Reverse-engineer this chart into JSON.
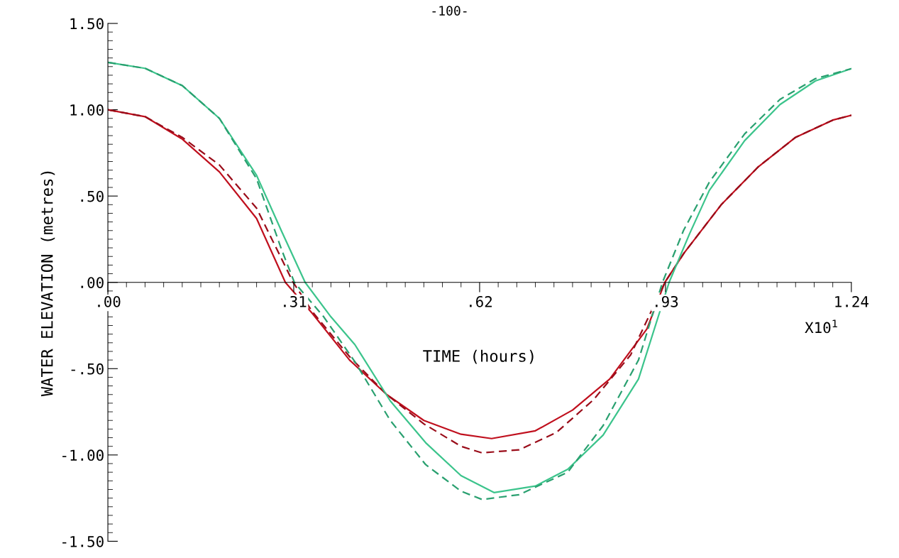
{
  "chart_data": {
    "type": "line",
    "xlabel": "TIME (hours)",
    "ylabel": "WATER ELEVATION (metres)",
    "annotations": [
      "-100-",
      "X10$^{1}$"
    ],
    "xlim": [
      0,
      1.24
    ],
    "ylim": [
      -1.5,
      1.5
    ],
    "xticks": [
      {
        "value": 0,
        "label": ".00"
      },
      {
        "value": 0.31,
        "label": ".31"
      },
      {
        "value": 0.62,
        "label": ".62"
      },
      {
        "value": 0.93,
        "label": ".93"
      },
      {
        "value": 1.24,
        "label": "1.24"
      }
    ],
    "yticks": [
      {
        "value": -1.5,
        "label": "-1.50"
      },
      {
        "value": -1.0,
        "label": "-1.00"
      },
      {
        "value": -0.5,
        "label": "-.50"
      },
      {
        "value": 0,
        "label": ".00"
      },
      {
        "value": 0.5,
        "label": ".50"
      },
      {
        "value": 1.0,
        "label": "1.00"
      },
      {
        "value": 1.5,
        "label": "1.50"
      }
    ],
    "grid": false,
    "marker": "none",
    "series": [
      {
        "color": "#c0101e",
        "line_style": "solid",
        "x": [
          0,
          0.062,
          0.124,
          0.186,
          0.248,
          0.296,
          0.341,
          0.403,
          0.465,
          0.527,
          0.589,
          0.64,
          0.713,
          0.775,
          0.837,
          0.899,
          0.929,
          0.961,
          1.023,
          1.085,
          1.147,
          1.209,
          1.24
        ],
        "values": [
          1.0,
          0.96,
          0.83,
          0.64,
          0.37,
          0,
          -0.18,
          -0.45,
          -0.65,
          -0.8,
          -0.88,
          -0.905,
          -0.86,
          -0.74,
          -0.56,
          -0.27,
          0,
          0.17,
          0.45,
          0.67,
          0.84,
          0.94,
          0.968
        ]
      },
      {
        "color": "#9a0d1a",
        "line_style": "dashed",
        "x": [
          0,
          0.062,
          0.124,
          0.186,
          0.248,
          0.309,
          0.341,
          0.403,
          0.465,
          0.527,
          0.589,
          0.624,
          0.686,
          0.748,
          0.81,
          0.872,
          0.929,
          0.961,
          1.023,
          1.085,
          1.147,
          1.209,
          1.24
        ],
        "values": [
          1.0,
          0.96,
          0.84,
          0.68,
          0.43,
          0,
          -0.17,
          -0.43,
          -0.65,
          -0.82,
          -0.95,
          -0.988,
          -0.97,
          -0.87,
          -0.68,
          -0.42,
          0,
          0.17,
          0.45,
          0.67,
          0.84,
          0.94,
          0.968
        ]
      },
      {
        "color": "#3cc48c",
        "line_style": "solid",
        "x": [
          0,
          0.062,
          0.124,
          0.186,
          0.248,
          0.29,
          0.329,
          0.372,
          0.412,
          0.471,
          0.53,
          0.589,
          0.644,
          0.713,
          0.767,
          0.826,
          0.885,
          0.936,
          0.97,
          1.003,
          1.062,
          1.121,
          1.18,
          1.24
        ],
        "values": [
          1.274,
          1.24,
          1.14,
          0.95,
          0.62,
          0.294,
          0,
          -0.2,
          -0.361,
          -0.687,
          -0.929,
          -1.12,
          -1.218,
          -1.18,
          -1.083,
          -0.885,
          -0.56,
          0,
          0.28,
          0.532,
          0.821,
          1.03,
          1.167,
          1.238
        ]
      },
      {
        "color": "#2aa070",
        "line_style": "dashed",
        "x": [
          0,
          0.062,
          0.124,
          0.186,
          0.248,
          0.29,
          0.311,
          0.36,
          0.412,
          0.471,
          0.53,
          0.589,
          0.624,
          0.686,
          0.767,
          0.826,
          0.885,
          0.925,
          0.96,
          1.003,
          1.062,
          1.121,
          1.18,
          1.24
        ],
        "values": [
          1.274,
          1.24,
          1.14,
          0.95,
          0.6,
          0.187,
          0,
          -0.2,
          -0.46,
          -0.8,
          -1.056,
          -1.21,
          -1.258,
          -1.23,
          -1.1,
          -0.83,
          -0.45,
          0,
          0.3,
          0.58,
          0.86,
          1.06,
          1.18,
          1.238
        ]
      }
    ]
  }
}
